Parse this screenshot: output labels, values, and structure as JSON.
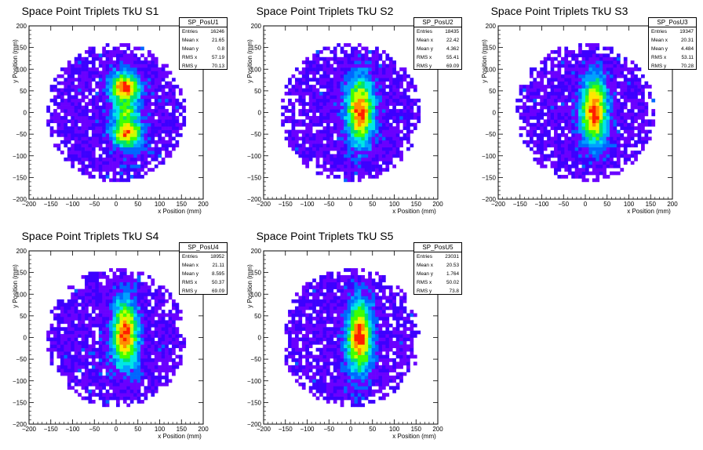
{
  "chart_data": [
    {
      "type": "heatmap",
      "title": "Space Point Triplets TkU S1",
      "xlabel": "x Position (mm)",
      "ylabel": "y Position (mm)",
      "xlim": [
        -200,
        200
      ],
      "ylim": [
        -200,
        200
      ],
      "xticks": [
        "−200",
        "−150",
        "−100",
        "−50",
        "0",
        "50",
        "100",
        "150",
        "200"
      ],
      "yticks": [
        "−200",
        "−150",
        "−100",
        "−50",
        "0",
        "50",
        "100",
        "150",
        "200"
      ],
      "stats": {
        "name": "SP_PosU1",
        "entries": "16246",
        "mean_x": "21.65",
        "mean_y": "0.8",
        "rms_x": "57.19",
        "rms_y": "70.13"
      },
      "labels": {
        "entries": "Entries",
        "mean_x": "Mean x",
        "mean_y": "Mean y",
        "rms_x": "RMS x",
        "rms_y": "RMS y"
      },
      "hist": {
        "radius": 160,
        "cx": 22,
        "cy": 1,
        "sx": 57,
        "sy": 70,
        "seed": 11,
        "shape": "twolobe"
      }
    },
    {
      "type": "heatmap",
      "title": "Space Point Triplets TkU S2",
      "xlabel": "x Position (mm)",
      "ylabel": "y Position (mm)",
      "xlim": [
        -200,
        200
      ],
      "ylim": [
        -200,
        200
      ],
      "xticks": [
        "−200",
        "−150",
        "−100",
        "−50",
        "0",
        "50",
        "100",
        "150",
        "200"
      ],
      "yticks": [
        "−200",
        "−150",
        "−100",
        "−50",
        "0",
        "50",
        "100",
        "150",
        "200"
      ],
      "stats": {
        "name": "SP_PosU2",
        "entries": "18435",
        "mean_x": "22.42",
        "mean_y": "4.362",
        "rms_x": "55.41",
        "rms_y": "69.09"
      },
      "labels": {
        "entries": "Entries",
        "mean_x": "Mean x",
        "mean_y": "Mean y",
        "rms_x": "RMS x",
        "rms_y": "RMS y"
      },
      "hist": {
        "radius": 160,
        "cx": 22,
        "cy": 4,
        "sx": 55,
        "sy": 69,
        "seed": 23,
        "shape": "column"
      }
    },
    {
      "type": "heatmap",
      "title": "Space Point Triplets TkU S3",
      "xlabel": "x Position (mm)",
      "ylabel": "y Position (mm)",
      "xlim": [
        -200,
        200
      ],
      "ylim": [
        -200,
        200
      ],
      "xticks": [
        "−200",
        "−150",
        "−100",
        "−50",
        "0",
        "50",
        "100",
        "150",
        "200"
      ],
      "yticks": [
        "−200",
        "−150",
        "−100",
        "−50",
        "0",
        "50",
        "100",
        "150",
        "200"
      ],
      "stats": {
        "name": "SP_PosU3",
        "entries": "19347",
        "mean_x": "20.31",
        "mean_y": "4.484",
        "rms_x": "53.11",
        "rms_y": "70.28"
      },
      "labels": {
        "entries": "Entries",
        "mean_x": "Mean x",
        "mean_y": "Mean y",
        "rms_x": "RMS x",
        "rms_y": "RMS y"
      },
      "hist": {
        "radius": 160,
        "cx": 20,
        "cy": 4,
        "sx": 53,
        "sy": 70,
        "seed": 37,
        "shape": "column"
      }
    },
    {
      "type": "heatmap",
      "title": "Space Point Triplets TkU S4",
      "xlabel": "x Position (mm)",
      "ylabel": "y Position (mm)",
      "xlim": [
        -200,
        200
      ],
      "ylim": [
        -200,
        200
      ],
      "xticks": [
        "−200",
        "−150",
        "−100",
        "−50",
        "0",
        "50",
        "100",
        "150",
        "200"
      ],
      "yticks": [
        "−200",
        "−150",
        "−100",
        "−50",
        "0",
        "50",
        "100",
        "150",
        "200"
      ],
      "stats": {
        "name": "SP_PosU4",
        "entries": "18952",
        "mean_x": "21.11",
        "mean_y": "8.595",
        "rms_x": "50.37",
        "rms_y": "69.09"
      },
      "labels": {
        "entries": "Entries",
        "mean_x": "Mean x",
        "mean_y": "Mean y",
        "rms_x": "RMS x",
        "rms_y": "RMS y"
      },
      "hist": {
        "radius": 160,
        "cx": 21,
        "cy": 9,
        "sx": 50,
        "sy": 69,
        "seed": 41,
        "shape": "column"
      }
    },
    {
      "type": "heatmap",
      "title": "Space Point Triplets TkU S5",
      "xlabel": "x Position (mm)",
      "ylabel": "y Position (mm)",
      "xlim": [
        -200,
        200
      ],
      "ylim": [
        -200,
        200
      ],
      "xticks": [
        "−200",
        "−150",
        "−100",
        "−50",
        "0",
        "50",
        "100",
        "150",
        "200"
      ],
      "yticks": [
        "−200",
        "−150",
        "−100",
        "−50",
        "0",
        "50",
        "100",
        "150",
        "200"
      ],
      "stats": {
        "name": "SP_PosU5",
        "entries": "23031",
        "mean_x": "20.53",
        "mean_y": "1.764",
        "rms_x": "50.02",
        "rms_y": "73.8"
      },
      "labels": {
        "entries": "Entries",
        "mean_x": "Mean x",
        "mean_y": "Mean y",
        "rms_x": "RMS x",
        "rms_y": "RMS y"
      },
      "hist": {
        "radius": 160,
        "cx": 20,
        "cy": 2,
        "sx": 50,
        "sy": 74,
        "seed": 53,
        "shape": "column"
      }
    }
  ],
  "colors": {
    "palette": [
      "#3c00ff",
      "#6a00ff",
      "#0066ff",
      "#00a0ff",
      "#00e6e6",
      "#00e070",
      "#40ff00",
      "#c8ff00",
      "#ffe600",
      "#ff8c00",
      "#ff1e00"
    ]
  }
}
